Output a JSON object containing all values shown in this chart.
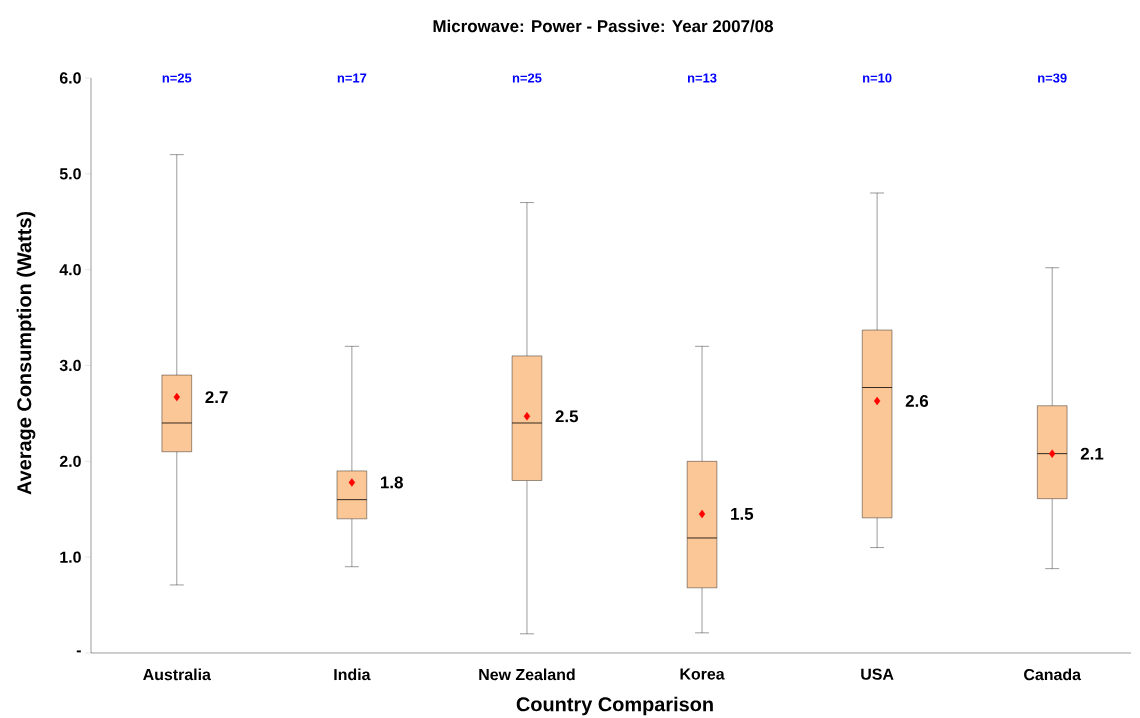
{
  "chart_data": {
    "type": "box",
    "title": "Microwave: Power - Passive: Year 2007/08",
    "xlabel": "Country Comparison",
    "ylabel": "Average Consumption (Watts)",
    "categories": [
      "Australia",
      "India",
      "New Zealand",
      "Korea",
      "USA",
      "Canada"
    ],
    "ylim": [
      0,
      6
    ],
    "yticks": [
      {
        "value": 0,
        "label": "-"
      },
      {
        "value": 1,
        "label": "1.0"
      },
      {
        "value": 2,
        "label": "2.0"
      },
      {
        "value": 3,
        "label": "3.0"
      },
      {
        "value": 4,
        "label": "4.0"
      },
      {
        "value": 5,
        "label": "5.0"
      },
      {
        "value": 6,
        "label": "6.0"
      }
    ],
    "grid": false,
    "series": [
      {
        "color": "#fbc796",
        "boxes": [
          {
            "low": 0.71,
            "q1": 2.1,
            "median": 2.4,
            "q3": 2.9,
            "high": 5.2
          },
          {
            "low": 0.9,
            "q1": 1.4,
            "median": 1.6,
            "q3": 1.9,
            "high": 3.2
          },
          {
            "low": 0.2,
            "q1": 1.8,
            "median": 2.4,
            "q3": 3.1,
            "high": 4.7
          },
          {
            "low": 0.21,
            "q1": 0.68,
            "median": 1.2,
            "q3": 2.0,
            "high": 3.2
          },
          {
            "low": 1.1,
            "q1": 1.41,
            "median": 2.77,
            "q3": 3.37,
            "high": 4.8
          },
          {
            "low": 0.88,
            "q1": 1.61,
            "median": 2.08,
            "q3": 2.58,
            "high": 4.02
          }
        ]
      },
      {
        "type": "scatter",
        "marker": "diamond",
        "color": "#ff0000",
        "x": [
          "Australia",
          "India",
          "New Zealand",
          "Korea",
          "USA",
          "Canada"
        ],
        "values": [
          2.67,
          1.78,
          2.47,
          1.45,
          2.63,
          2.08
        ],
        "value_labels": [
          "2.7",
          "1.8",
          "2.5",
          "1.5",
          "2.6",
          "2.1"
        ]
      }
    ],
    "annotations": [
      "n=25",
      "n=17",
      "n=25",
      "n=13",
      "n=10",
      "n=39"
    ]
  }
}
